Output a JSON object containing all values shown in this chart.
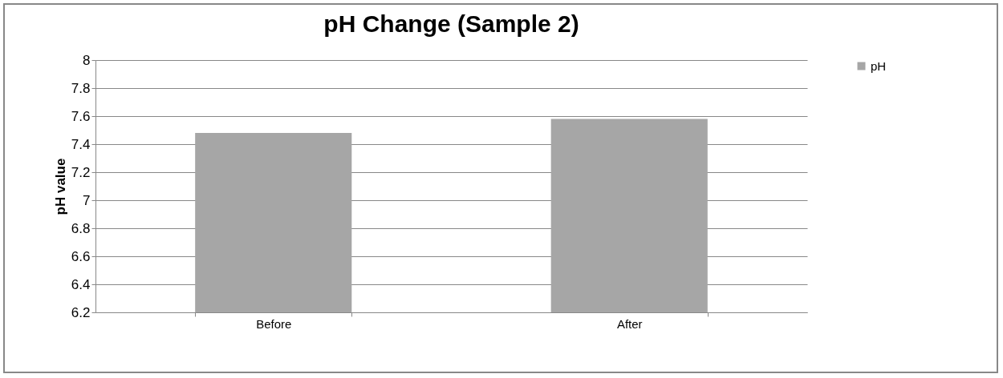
{
  "chart_data": {
    "type": "bar",
    "title": "pH Change (Sample 2)",
    "ylabel": "pH value",
    "categories": [
      "Before",
      "After"
    ],
    "series": [
      {
        "name": "pH",
        "color": "#a6a6a6",
        "values": [
          7.48,
          7.58
        ]
      }
    ],
    "ylim": [
      6.2,
      8
    ],
    "yticks": [
      6.2,
      6.4,
      6.6,
      6.8,
      7,
      7.2,
      7.4,
      7.6,
      7.8,
      8
    ],
    "grid": "y",
    "legend": "right"
  }
}
